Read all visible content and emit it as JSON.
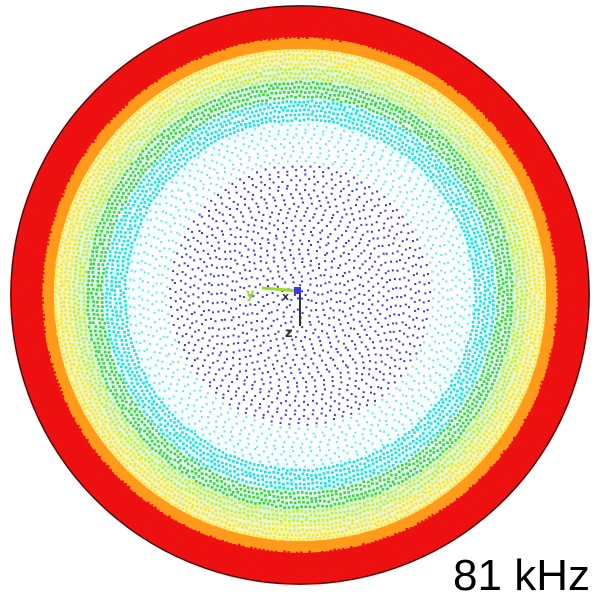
{
  "frequency_label": "81 kHz",
  "colormap": {
    "outer": "#ee1111",
    "orange": "#ff9a1a",
    "yellow": "#f5e63a",
    "yellow_green": "#c8ec3a",
    "green": "#3ed43e",
    "cyan": "#22e0e0",
    "light_cyan": "#66e8f0",
    "center": "#3a3ae0"
  },
  "triad": {
    "axes": [
      "y",
      "x",
      "z"
    ],
    "x_color": "#9adc2a",
    "y_color": "#333333"
  }
}
